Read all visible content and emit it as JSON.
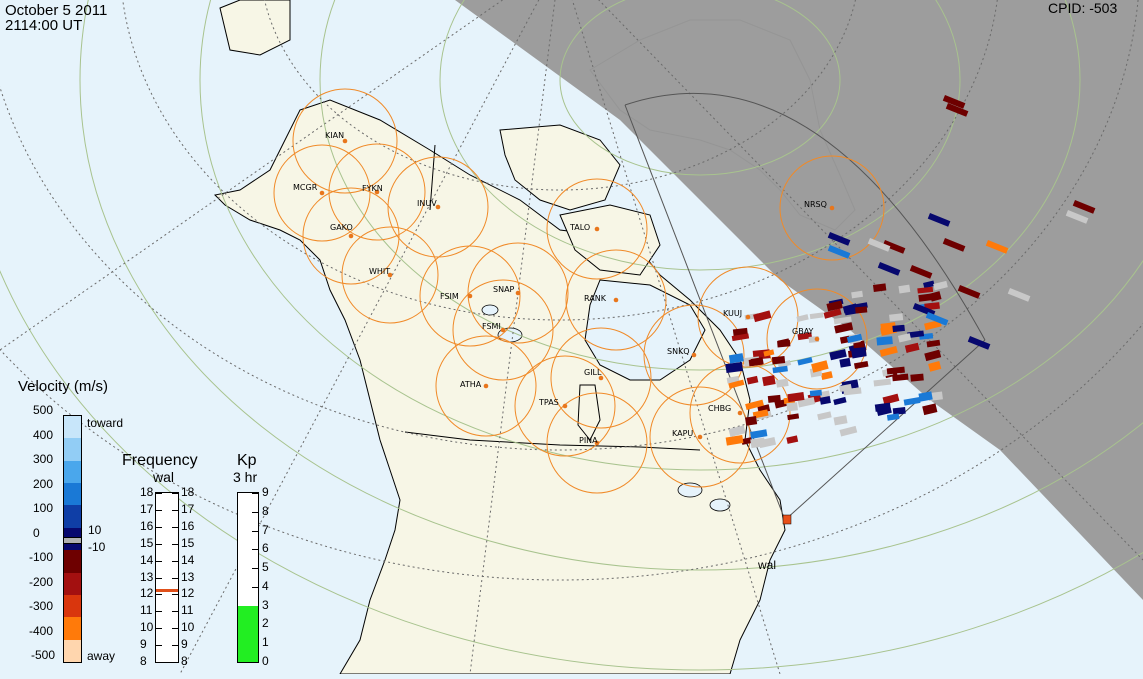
{
  "header": {
    "date": "October 5 2011",
    "time": "2114:00 UT",
    "cpid": "CPID:  -503"
  },
  "radar": {
    "site_label": "wal"
  },
  "stations": [
    {
      "code": "KIAN"
    },
    {
      "code": "MCGR"
    },
    {
      "code": "FYKN"
    },
    {
      "code": "INUV"
    },
    {
      "code": "GAKO"
    },
    {
      "code": "WHIT"
    },
    {
      "code": "FSIM"
    },
    {
      "code": "SNAP"
    },
    {
      "code": "FSMI"
    },
    {
      "code": "TALO"
    },
    {
      "code": "RANK"
    },
    {
      "code": "ATHA"
    },
    {
      "code": "TPAS"
    },
    {
      "code": "GILL"
    },
    {
      "code": "PINA"
    },
    {
      "code": "KAPU"
    },
    {
      "code": "CHBG"
    },
    {
      "code": "SNKQ"
    },
    {
      "code": "KUUJ"
    },
    {
      "code": "GBAY"
    },
    {
      "code": "NRSQ"
    }
  ],
  "velocity_scale": {
    "title": "Velocity (m/s)",
    "toward_label": "toward",
    "away_label": "away",
    "ticks": [
      "500",
      "400",
      "300",
      "200",
      "100",
      "0",
      "-100",
      "-200",
      "-300",
      "-400",
      "-500"
    ],
    "ground_pos": "10",
    "ground_neg": "-10",
    "colors": [
      "#c8e6fa",
      "#92cdf5",
      "#4aa7ec",
      "#1a79d6",
      "#0f3ea6",
      "#07086e",
      "#6e0000",
      "#a31010",
      "#d9360d",
      "#ff7a0a",
      "#ffd6ae"
    ]
  },
  "frequency_scale": {
    "title": "Frequency",
    "subtitle": "wal",
    "ticks": [
      "18",
      "17",
      "16",
      "15",
      "14",
      "13",
      "12",
      "11",
      "10",
      "9",
      "8"
    ],
    "current": 12.3,
    "marker_color": "#e0501a"
  },
  "kp_scale": {
    "title": "Kp",
    "subtitle": "3 hr",
    "ticks": [
      "9",
      "8",
      "7",
      "6",
      "5",
      "4",
      "3",
      "2",
      "1",
      "0"
    ],
    "current": 3,
    "fill_color": "#22ee22"
  },
  "colors": {
    "ocean": "#e6f3fb",
    "land": "#f7f6e6",
    "night": "#9a9a9a",
    "circle": "#f08a28",
    "station": "#e8761c",
    "grid": "#a8c38e"
  }
}
